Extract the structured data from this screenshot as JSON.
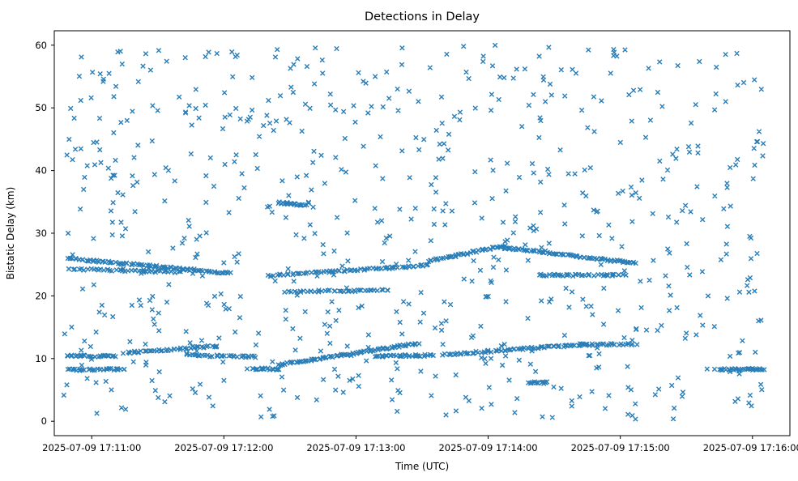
{
  "chart_data": {
    "type": "scatter",
    "title": "Detections in Delay",
    "xlabel": "Time (UTC)",
    "ylabel": "Bistatic Delay (km)",
    "marker": "x",
    "marker_color": "#1f77b4",
    "legend": "none",
    "grid": false,
    "x_axis": {
      "unit": "seconds after 2025-07-09 17:10:45 UTC",
      "range": [
        -2,
        332
      ],
      "ticks": [
        {
          "pos": 15,
          "label": "2025-07-09 17:11:00"
        },
        {
          "pos": 75,
          "label": "2025-07-09 17:12:00"
        },
        {
          "pos": 135,
          "label": "2025-07-09 17:13:00"
        },
        {
          "pos": 195,
          "label": "2025-07-09 17:14:00"
        },
        {
          "pos": 255,
          "label": "2025-07-09 17:15:00"
        },
        {
          "pos": 315,
          "label": "2025-07-09 17:16:00"
        }
      ]
    },
    "y_axis": {
      "range": [
        -2.3,
        62.3
      ],
      "ticks": [
        0,
        10,
        20,
        30,
        40,
        50,
        60
      ]
    },
    "tracks": [
      {
        "x0": 4,
        "x1": 78,
        "y0": 26.0,
        "y1": 23.6,
        "n": 90
      },
      {
        "x0": 4,
        "x1": 55,
        "y0": 24.3,
        "y1": 23.8,
        "n": 45
      },
      {
        "x0": 95,
        "x1": 168,
        "y0": 23.2,
        "y1": 24.9,
        "n": 70
      },
      {
        "x0": 103,
        "x1": 150,
        "y0": 20.7,
        "y1": 20.9,
        "n": 40
      },
      {
        "x0": 168,
        "x1": 200,
        "y0": 25.5,
        "y1": 27.9,
        "n": 40
      },
      {
        "x0": 200,
        "x1": 262,
        "y0": 27.8,
        "y1": 25.2,
        "n": 80
      },
      {
        "x0": 218,
        "x1": 258,
        "y0": 23.3,
        "y1": 23.3,
        "n": 40
      },
      {
        "x0": 100,
        "x1": 112,
        "y0": 34.9,
        "y1": 34.4,
        "n": 25
      },
      {
        "x0": 4,
        "x1": 26,
        "y0": 10.4,
        "y1": 10.4,
        "n": 30
      },
      {
        "x0": 4,
        "x1": 30,
        "y0": 8.2,
        "y1": 8.3,
        "n": 30
      },
      {
        "x0": 30,
        "x1": 72,
        "y0": 10.9,
        "y1": 12.0,
        "n": 45
      },
      {
        "x0": 58,
        "x1": 90,
        "y0": 10.5,
        "y1": 10.3,
        "n": 30
      },
      {
        "x0": 88,
        "x1": 100,
        "y0": 8.4,
        "y1": 8.3,
        "n": 18
      },
      {
        "x0": 100,
        "x1": 163,
        "y0": 9.0,
        "y1": 12.4,
        "n": 85
      },
      {
        "x0": 143,
        "x1": 170,
        "y0": 10.4,
        "y1": 10.5,
        "n": 35
      },
      {
        "x0": 175,
        "x1": 240,
        "y0": 10.6,
        "y1": 12.3,
        "n": 75
      },
      {
        "x0": 238,
        "x1": 262,
        "y0": 12.2,
        "y1": 12.3,
        "n": 25
      },
      {
        "x0": 300,
        "x1": 320,
        "y0": 8.3,
        "y1": 8.3,
        "n": 30
      },
      {
        "x0": 213,
        "x1": 222,
        "y0": 6.1,
        "y1": 6.2,
        "n": 12
      }
    ],
    "clutter": {
      "count": 730,
      "x_range": [
        2,
        320
      ],
      "y_range": [
        0.3,
        60.2
      ],
      "seed": 42
    },
    "jitter": {
      "x": 1.6,
      "y": 0.3
    }
  }
}
